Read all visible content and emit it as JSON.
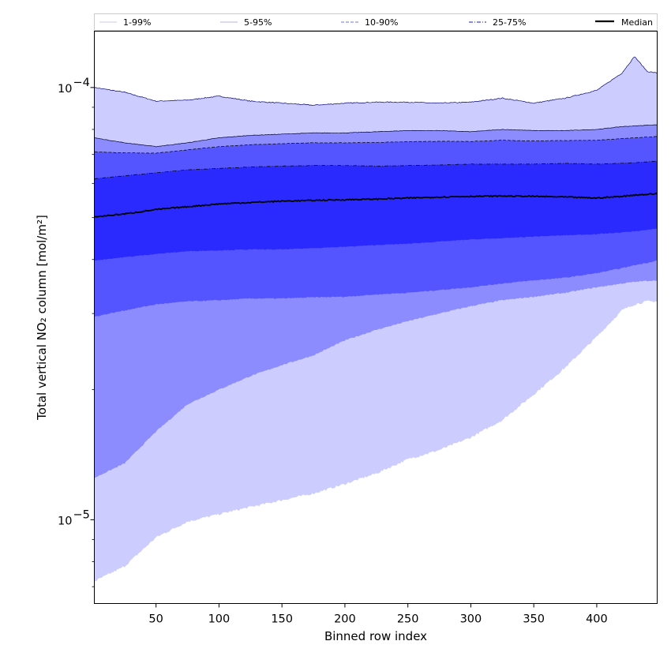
{
  "chart_data": {
    "type": "area",
    "xlabel": "Binned row index",
    "ylabel": "Total vertical NO₂ column [mol/m²]",
    "xlim": [
      1,
      448
    ],
    "ylim": [
      6.4e-06,
      0.000135
    ],
    "yscale": "log",
    "x_ticks": [
      50,
      100,
      150,
      200,
      250,
      300,
      350,
      400
    ],
    "y_ticks": [
      {
        "value": 1e-05,
        "base": "10",
        "exp": "−5"
      },
      {
        "value": 0.0001,
        "base": "10",
        "exp": "−4"
      }
    ],
    "grid": false,
    "legend_position": "top, above plot, single row",
    "x": [
      1,
      25,
      50,
      75,
      100,
      125,
      150,
      175,
      200,
      225,
      250,
      275,
      300,
      325,
      350,
      375,
      400,
      420,
      430,
      440,
      448
    ],
    "bands": [
      {
        "name": "1-99%",
        "color": "#ccccff",
        "edge": "#000080",
        "dash": "solid",
        "lower": [
          7.2e-06,
          7.8e-06,
          9.1e-06,
          9.9e-06,
          1.03e-05,
          1.07e-05,
          1.11e-05,
          1.15e-05,
          1.21e-05,
          1.28e-05,
          1.38e-05,
          1.45e-05,
          1.55e-05,
          1.7e-05,
          1.95e-05,
          2.25e-05,
          2.65e-05,
          3.05e-05,
          3.15e-05,
          3.2e-05,
          3.2e-05
        ],
        "upper": [
          0.0001,
          9.75e-05,
          9.3e-05,
          9.35e-05,
          9.55e-05,
          9.3e-05,
          9.2e-05,
          9.1e-05,
          9.2e-05,
          9.25e-05,
          9.25e-05,
          9.2e-05,
          9.25e-05,
          9.45e-05,
          9.2e-05,
          9.45e-05,
          9.85e-05,
          0.000108,
          0.000118,
          0.000109,
          0.000108
        ]
      },
      {
        "name": "5-95%",
        "color": "#8c8cff",
        "edge": "#000033",
        "dash": "solid",
        "lower": [
          1.25e-05,
          1.35e-05,
          1.6e-05,
          1.85e-05,
          2e-05,
          2.15e-05,
          2.28e-05,
          2.4e-05,
          2.6e-05,
          2.75e-05,
          2.88e-05,
          3e-05,
          3.12e-05,
          3.22e-05,
          3.28e-05,
          3.35e-05,
          3.45e-05,
          3.52e-05,
          3.55e-05,
          3.57e-05,
          3.58e-05
        ],
        "upper": [
          7.65e-05,
          7.45e-05,
          7.3e-05,
          7.45e-05,
          7.65e-05,
          7.75e-05,
          7.8e-05,
          7.85e-05,
          7.85e-05,
          7.9e-05,
          7.95e-05,
          7.95e-05,
          7.9e-05,
          8e-05,
          7.95e-05,
          7.95e-05,
          8e-05,
          8.12e-05,
          8.15e-05,
          8.18e-05,
          8.2e-05
        ]
      },
      {
        "name": "10-90%",
        "color": "#5555ff",
        "edge": "#000000",
        "dash": "dashed",
        "lower": [
          2.95e-05,
          3.05e-05,
          3.15e-05,
          3.2e-05,
          3.22e-05,
          3.25e-05,
          3.25e-05,
          3.27e-05,
          3.28e-05,
          3.32e-05,
          3.35e-05,
          3.4e-05,
          3.45e-05,
          3.52e-05,
          3.58e-05,
          3.63e-05,
          3.72e-05,
          3.82e-05,
          3.88e-05,
          3.93e-05,
          3.98e-05
        ]
      },
      {
        "name": "25-75%",
        "color": "#2a2aff",
        "edge": "#000000",
        "dash": "dashdot",
        "lower": [
          3.98e-05,
          4.05e-05,
          4.12e-05,
          4.18e-05,
          4.2e-05,
          4.22e-05,
          4.22e-05,
          4.25e-05,
          4.28e-05,
          4.32e-05,
          4.35e-05,
          4.4e-05,
          4.45e-05,
          4.48e-05,
          4.52e-05,
          4.55e-05,
          4.58e-05,
          4.62e-05,
          4.65e-05,
          4.68e-05,
          4.72e-05
        ],
        "upper": [
          6.15e-05,
          6.25e-05,
          6.35e-05,
          6.45e-05,
          6.5e-05,
          6.55e-05,
          6.58e-05,
          6.6e-05,
          6.6e-05,
          6.58e-05,
          6.6e-05,
          6.62e-05,
          6.65e-05,
          6.65e-05,
          6.65e-05,
          6.68e-05,
          6.65e-05,
          6.68e-05,
          6.7e-05,
          6.73e-05,
          6.76e-05
        ]
      }
    ],
    "median": {
      "name": "Median",
      "color": "#000000",
      "values": [
        5.02e-05,
        5.1e-05,
        5.22e-05,
        5.3e-05,
        5.38e-05,
        5.42e-05,
        5.46e-05,
        5.48e-05,
        5.5e-05,
        5.52e-05,
        5.55e-05,
        5.58e-05,
        5.6e-05,
        5.61e-05,
        5.6e-05,
        5.58e-05,
        5.55e-05,
        5.6e-05,
        5.64e-05,
        5.66e-05,
        5.68e-05
      ]
    }
  }
}
